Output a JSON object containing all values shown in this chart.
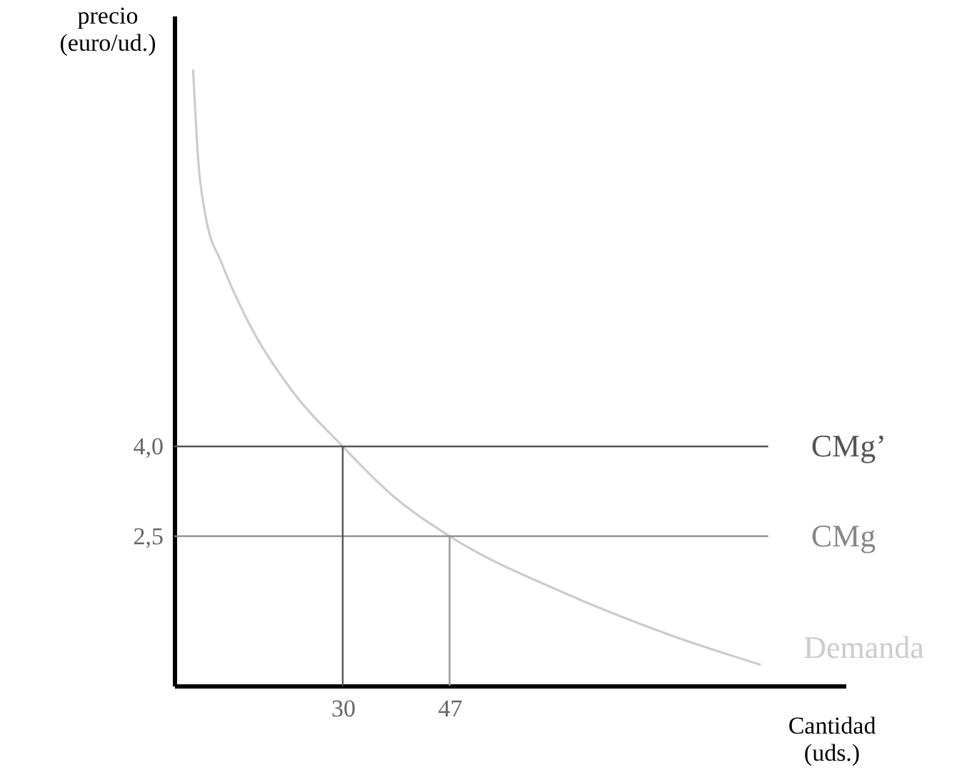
{
  "chart_data": {
    "type": "line",
    "xlabel": "Cantidad\n(uds.)",
    "ylabel": "precio\n(euro/ud.)",
    "xlim": [
      3.2,
      110
    ],
    "ylim": [
      0,
      11.2
    ],
    "xticks": [
      30,
      47
    ],
    "yticks": [
      {
        "value": 2.5,
        "label": "2,5"
      },
      {
        "value": 4,
        "label": "4,0"
      }
    ],
    "grid": false,
    "marker": "none",
    "line_style": "solid",
    "series": [
      {
        "name": "Demanda",
        "color": "#cccccc",
        "x": [
          6.2,
          7.0,
          8.1,
          10.8,
          14.5,
          21.8,
          30,
          37.7,
          47,
          65.5,
          82.3,
          96.5
        ],
        "values": [
          10.3,
          8.8,
          7.9,
          7.05,
          6.18,
          4.95,
          4,
          3.2,
          2.5,
          1.54,
          0.84,
          0.35
        ]
      },
      {
        "name": "CMg’",
        "color": "#555555",
        "x": [
          3.2,
          97.7
        ],
        "values": [
          4,
          4
        ]
      },
      {
        "name": "CMg",
        "color": "#888888",
        "x": [
          3.2,
          97.7
        ],
        "values": [
          2.5,
          2.5
        ]
      },
      {
        "color": "#555555",
        "x": [
          30,
          30
        ],
        "values": [
          0,
          4
        ]
      },
      {
        "color": "#999999",
        "x": [
          47,
          47
        ],
        "values": [
          0,
          2.5
        ]
      }
    ]
  }
}
